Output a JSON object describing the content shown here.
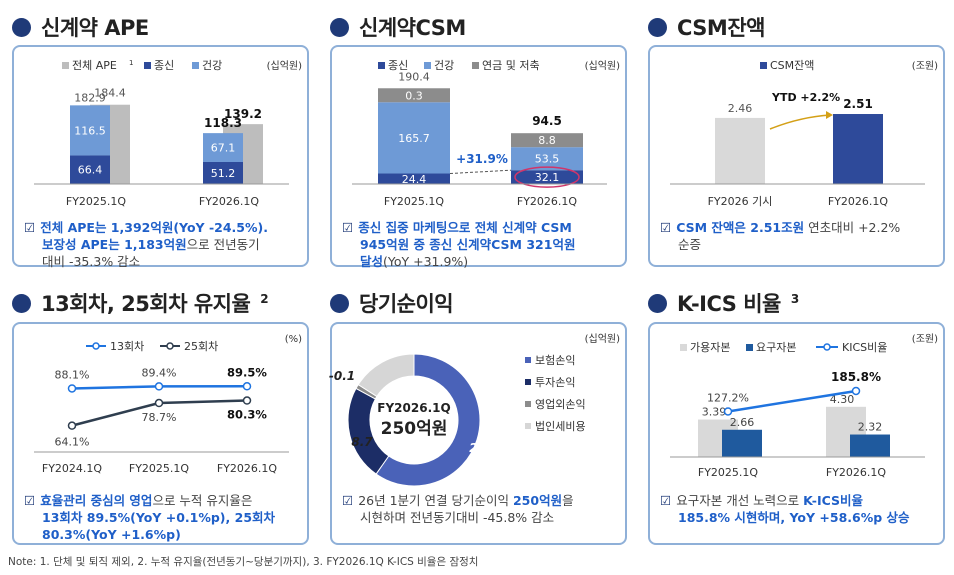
{
  "colors": {
    "navy": "#2e4a9a",
    "mid": "#6e9ad6",
    "gray": "#bdbdbd",
    "dark_gray": "#8c8c8c",
    "blue_line": "#1f74e0",
    "dark_line": "#2f3e4f",
    "csm_bar": "#2e4a9a",
    "csm_prev": "#d9d9d9",
    "donut1": "#4a62b8",
    "donut2": "#1c2d66",
    "donut3": "#8c8c8c",
    "donut4": "#d6d6d6",
    "accent_text": "#1f5fc8"
  },
  "sections": {
    "ape": {
      "title": "신계약 APE",
      "unit": "(십억원)",
      "legend": [
        "전체 APE",
        "종신",
        "건강"
      ],
      "legend_sup": "1",
      "footer_lines": [
        [
          "전체 APE는 1,392억원(YoY -24.5%).",
          "hl"
        ],
        [
          "보장성 APE는 1,183억원",
          "hl"
        ],
        [
          "으로 전년동기",
          "n"
        ],
        [
          "대비 -35.3% 감소",
          "n"
        ]
      ]
    },
    "csm": {
      "title": "신계약CSM",
      "unit": "(십억원)",
      "legend": [
        "종신",
        "건강",
        "연금 및 저축"
      ],
      "growth_label": "+31.9%",
      "footer_lines": [
        "종신 집중 마케팅으로 전체 신계약 CSM",
        "945억원 중 종신 신계약CSM 321억원",
        "달성",
        "(YoY +31.9%)"
      ]
    },
    "csm_balance": {
      "title": "CSM잔액",
      "unit": "(조원)",
      "legend": [
        "CSM잔액"
      ],
      "ytd_label": "YTD +2.2%",
      "footer_lines": [
        "CSM 잔액은 2.51조원",
        "연초대비 +2.2%",
        "순증"
      ]
    },
    "retention": {
      "title": "13회차, 25회차 유지율",
      "title_sup": "2",
      "unit": "(%)",
      "legend": [
        "13회차",
        "25회차"
      ],
      "footer_lines": [
        "효율관리 중심의 영업",
        "으로 누적 유지율은",
        "13회차 89.5%(YoY +0.1%p), 25회차",
        "80.3%(YoY +1.6%p)"
      ]
    },
    "net_income": {
      "title": "당기순이익",
      "unit": "(십억원)",
      "legend": [
        "보험손익",
        "투자손익",
        "영업외손익",
        "법인세비용"
      ],
      "center_top": "FY2026.1Q",
      "center_main": "250억원",
      "footer_lines": [
        "26년 1분기 연결 당기순이익",
        "250억원",
        "을",
        "시현하며 전년동기대비 -45.8% 감소"
      ]
    },
    "kics": {
      "title": "K-ICS 비율",
      "title_sup": "3",
      "unit": "(조원)",
      "legend": [
        "가용자본",
        "요구자본",
        "KICS비율"
      ],
      "footer_lines": [
        "요구자본 개선 노력으로",
        "K-ICS비율",
        "185.8% 시현하며, YoY +58.6%p 상승"
      ]
    }
  },
  "note": "Note: 1. 단체 및 퇴직 제외, 2. 누적 유지율(전년동기~당분기까지), 3. FY2026.1Q K-ICS 비율은 잠정치",
  "chart_data": [
    {
      "id": "ape",
      "type": "bar",
      "categories": [
        "FY2025.1Q",
        "FY2026.1Q"
      ],
      "series": [
        {
          "name": "전체 APE",
          "values": [
            184.4,
            139.2
          ]
        },
        {
          "name": "종신",
          "values": [
            66.4,
            51.2
          ]
        },
        {
          "name": "건강",
          "values": [
            116.5,
            67.1
          ]
        }
      ],
      "stack_totals": [
        182.9,
        118.3
      ]
    },
    {
      "id": "csm",
      "type": "bar",
      "categories": [
        "FY2025.1Q",
        "FY2026.1Q"
      ],
      "series": [
        {
          "name": "종신",
          "values": [
            24.4,
            32.1
          ]
        },
        {
          "name": "건강",
          "values": [
            165.7,
            53.5
          ]
        },
        {
          "name": "연금 및 저축",
          "values": [
            0.3,
            8.8
          ]
        }
      ],
      "totals": [
        190.4,
        94.5
      ]
    },
    {
      "id": "csm_balance",
      "type": "bar",
      "categories": [
        "FY2026 기시",
        "FY2026.1Q"
      ],
      "series": [
        {
          "name": "CSM잔액",
          "values": [
            2.46,
            2.51
          ]
        }
      ]
    },
    {
      "id": "retention",
      "type": "line",
      "x": [
        "FY2024.1Q",
        "FY2025.1Q",
        "FY2026.1Q"
      ],
      "series": [
        {
          "name": "13회차",
          "values": [
            88.1,
            89.4,
            89.5
          ]
        },
        {
          "name": "25회차",
          "values": [
            64.1,
            78.7,
            80.3
          ]
        }
      ]
    },
    {
      "id": "net_income",
      "type": "pie",
      "slices": [
        {
          "name": "보험손익",
          "value": 22.4
        },
        {
          "name": "투자손익",
          "value": 8.7
        },
        {
          "name": "영업외손익",
          "value": -0.1
        },
        {
          "name": "법인세비용",
          "value": -6.0
        }
      ]
    },
    {
      "id": "kics",
      "type": "bar",
      "categories": [
        "FY2025.1Q",
        "FY2026.1Q"
      ],
      "series": [
        {
          "name": "가용자본",
          "values": [
            3.39,
            4.3
          ]
        },
        {
          "name": "요구자본",
          "values": [
            2.66,
            2.32
          ]
        },
        {
          "name": "KICS비율",
          "values": [
            127.2,
            185.8
          ]
        }
      ]
    }
  ]
}
